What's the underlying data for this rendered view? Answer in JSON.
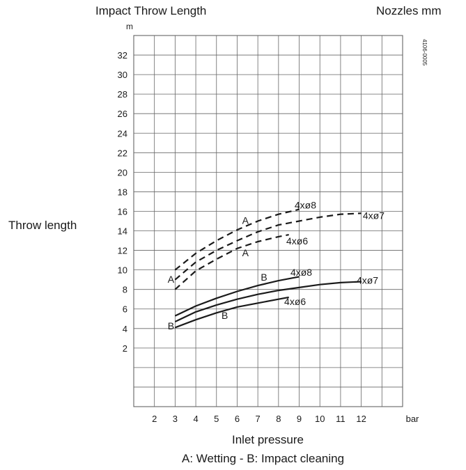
{
  "chart_data": {
    "type": "line",
    "title": "Impact Throw Length",
    "header_right": "Nozzles mm",
    "ylabel": "Throw length",
    "yunit": "m",
    "xlabel": "Inlet pressure",
    "xunit": "bar",
    "legend_note": "A: Wetting - B: Impact cleaning",
    "figure_code": "4106-0005",
    "xlim": [
      1,
      14
    ],
    "ylim": [
      -4,
      34
    ],
    "x_ticks": [
      2,
      3,
      4,
      5,
      6,
      7,
      8,
      9,
      10,
      11,
      12
    ],
    "y_ticks": [
      2,
      4,
      6,
      8,
      10,
      12,
      14,
      16,
      18,
      20,
      22,
      24,
      26,
      28,
      30,
      32
    ],
    "grid": true,
    "series": [
      {
        "name": "4xø8",
        "mode": "A",
        "style": "dashed",
        "x": [
          3,
          4,
          5,
          6,
          7,
          8,
          9
        ],
        "y": [
          10.0,
          11.7,
          13.0,
          14.1,
          15.0,
          15.7,
          16.2
        ]
      },
      {
        "name": "4xø7",
        "mode": "A",
        "style": "dashed",
        "x": [
          3,
          4,
          5,
          6,
          7,
          8,
          9,
          10,
          11,
          12
        ],
        "y": [
          9.0,
          10.8,
          12.0,
          13.0,
          13.9,
          14.6,
          15.0,
          15.4,
          15.7,
          15.8
        ]
      },
      {
        "name": "4xø6",
        "mode": "A",
        "style": "dashed",
        "x": [
          3,
          4,
          5,
          6,
          7,
          8,
          8.5
        ],
        "y": [
          8.0,
          9.9,
          11.1,
          12.2,
          12.9,
          13.4,
          13.6
        ]
      },
      {
        "name": "4xø8",
        "mode": "B",
        "style": "solid",
        "x": [
          3,
          4,
          5,
          6,
          7,
          8,
          9
        ],
        "y": [
          5.3,
          6.3,
          7.1,
          7.8,
          8.4,
          8.9,
          9.3
        ]
      },
      {
        "name": "4xø7",
        "mode": "B",
        "style": "solid",
        "x": [
          3,
          4,
          5,
          6,
          7,
          8,
          9,
          10,
          11,
          12
        ],
        "y": [
          4.7,
          5.7,
          6.4,
          7.0,
          7.5,
          7.9,
          8.2,
          8.5,
          8.7,
          8.8
        ]
      },
      {
        "name": "4xø6",
        "mode": "B",
        "style": "solid",
        "x": [
          3,
          4,
          5,
          6,
          7,
          8,
          8.5
        ],
        "y": [
          4.1,
          4.9,
          5.6,
          6.2,
          6.6,
          7.0,
          7.2
        ]
      }
    ],
    "curve_labels": [
      {
        "text": "4xø8",
        "x": 9.3,
        "y": 16.3
      },
      {
        "text": "4xø7",
        "x": 12.6,
        "y": 15.2
      },
      {
        "text": "4xø6",
        "x": 8.9,
        "y": 12.6
      },
      {
        "text": "4xø8",
        "x": 9.1,
        "y": 9.4
      },
      {
        "text": "4xø7",
        "x": 12.3,
        "y": 8.6
      },
      {
        "text": "4xø6",
        "x": 8.8,
        "y": 6.4
      },
      {
        "text": "A",
        "x": 6.4,
        "y": 14.7
      },
      {
        "text": "A",
        "x": 2.8,
        "y": 8.7
      },
      {
        "text": "A",
        "x": 6.4,
        "y": 11.4
      },
      {
        "text": "B",
        "x": 7.3,
        "y": 8.9
      },
      {
        "text": "B",
        "x": 2.8,
        "y": 3.9
      },
      {
        "text": "B",
        "x": 5.4,
        "y": 5.0
      }
    ]
  }
}
